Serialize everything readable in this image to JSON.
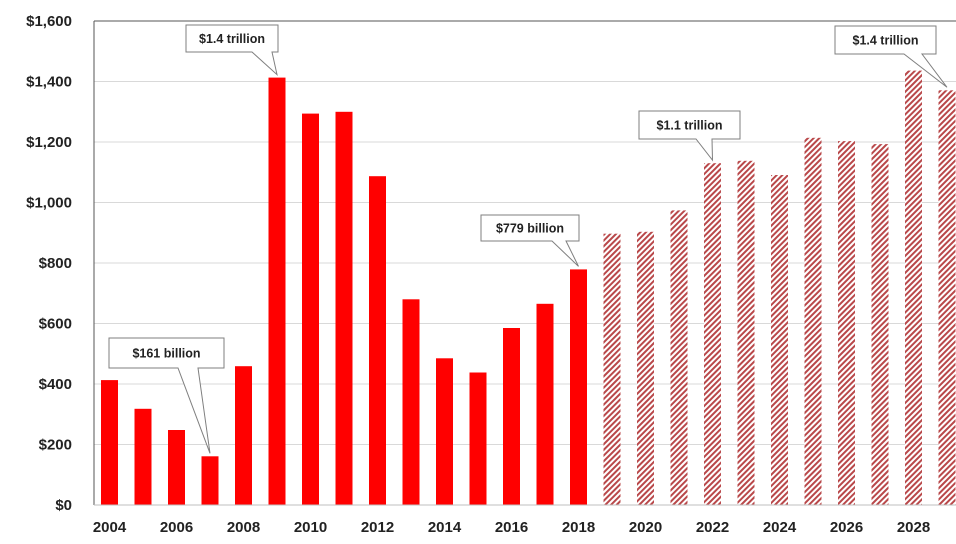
{
  "chart_data": {
    "type": "bar",
    "categories": [
      "2004",
      "2005",
      "2006",
      "2007",
      "2008",
      "2009",
      "2010",
      "2011",
      "2012",
      "2013",
      "2014",
      "2015",
      "2016",
      "2017",
      "2018",
      "2019",
      "2020",
      "2021",
      "2022",
      "2023",
      "2024",
      "2025",
      "2026",
      "2027",
      "2028",
      "2029"
    ],
    "series": [
      {
        "values": [
          413,
          318,
          248,
          161,
          459,
          1413,
          1294,
          1300,
          1087,
          680,
          485,
          438,
          585,
          665,
          779,
          null,
          null,
          null,
          null,
          null,
          null,
          null,
          null,
          null,
          null,
          null
        ]
      },
      {
        "values": [
          null,
          null,
          null,
          null,
          null,
          null,
          null,
          null,
          null,
          null,
          null,
          null,
          null,
          null,
          null,
          897,
          903,
          974,
          1130,
          1138,
          1091,
          1214,
          1203,
          1193,
          1436,
          1371
        ]
      }
    ],
    "x_tick_labels": [
      "2004",
      "2006",
      "2008",
      "2010",
      "2012",
      "2014",
      "2016",
      "2018",
      "2020",
      "2022",
      "2024",
      "2026",
      "2028"
    ],
    "y_tick_labels": [
      "$0",
      "$200",
      "$400",
      "$600",
      "$800",
      "$1,000",
      "$1,200",
      "$1,400",
      "$1,600"
    ],
    "ylim": [
      0,
      1600
    ],
    "grid": true,
    "title": "",
    "xlabel": "",
    "ylabel": "",
    "annotations": [
      {
        "text": "$161 billion",
        "year": "2007",
        "value": 161
      },
      {
        "text": "$1.4 trillion",
        "year": "2009",
        "value": 1413
      },
      {
        "text": "$779 billion",
        "year": "2018",
        "value": 779
      },
      {
        "text": "$1.1 trillion",
        "year": "2022",
        "value": 1130
      },
      {
        "text": "$1.4 trillion",
        "year": "2029",
        "value": 1371
      }
    ],
    "colors": {
      "actual": "#ff0000",
      "projected": "#c0504d",
      "gridline": "#d9d9d9"
    }
  }
}
